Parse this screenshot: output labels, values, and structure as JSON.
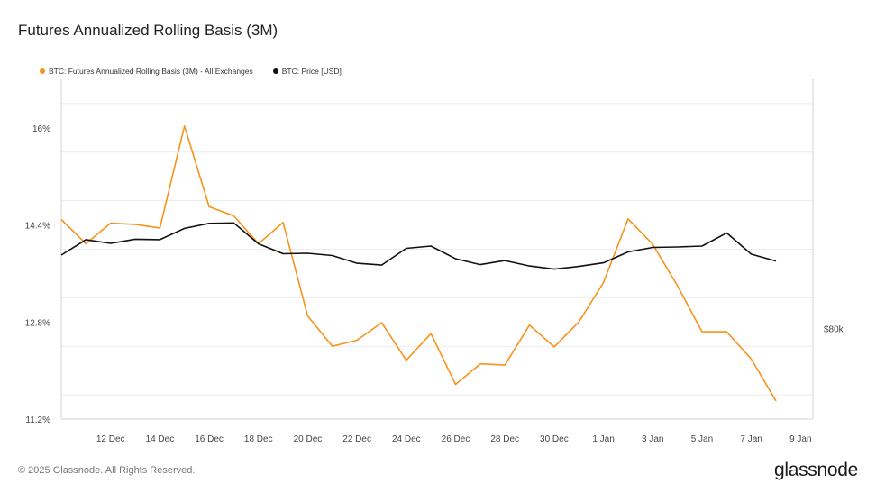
{
  "title": "Futures Annualized Rolling Basis (3M)",
  "footer": "© 2025 Glassnode. All Rights Reserved.",
  "brand": "glassnode",
  "chart_data": {
    "type": "line",
    "title": "Futures Annualized Rolling Basis (3M)",
    "legend_position": "top-left",
    "grid": true,
    "x_tick_labels": [
      "12 Dec",
      "14 Dec",
      "16 Dec",
      "18 Dec",
      "20 Dec",
      "22 Dec",
      "24 Dec",
      "26 Dec",
      "28 Dec",
      "30 Dec",
      "1 Jan",
      "3 Jan",
      "5 Jan",
      "7 Jan",
      "9 Jan"
    ],
    "y_left": {
      "tick_labels": [
        "11.2%",
        "12.8%",
        "14.4%",
        "16%"
      ],
      "ticks": [
        11.2,
        12.8,
        14.4,
        16.0
      ],
      "range": [
        11.2,
        16.8
      ]
    },
    "y_right": {
      "tick_labels": [
        "$80k"
      ],
      "ticks": [
        80000
      ]
    },
    "x": [
      "2024-12-10",
      "2024-12-11",
      "2024-12-12",
      "2024-12-13",
      "2024-12-14",
      "2024-12-15",
      "2024-12-16",
      "2024-12-17",
      "2024-12-18",
      "2024-12-19",
      "2024-12-20",
      "2024-12-21",
      "2024-12-22",
      "2024-12-23",
      "2024-12-24",
      "2024-12-25",
      "2024-12-26",
      "2024-12-27",
      "2024-12-28",
      "2024-12-29",
      "2024-12-30",
      "2024-12-31",
      "2025-01-01",
      "2025-01-02",
      "2025-01-03",
      "2025-01-04",
      "2025-01-05",
      "2025-01-06",
      "2025-01-07",
      "2025-01-08"
    ],
    "series": [
      {
        "name": "BTC: Futures Annualized Rolling Basis (3M) - All Exchanges",
        "color": "#f7931a",
        "axis": "left",
        "values": [
          14.49,
          14.09,
          14.43,
          14.41,
          14.35,
          16.03,
          14.7,
          14.55,
          14.09,
          14.44,
          12.9,
          12.4,
          12.5,
          12.79,
          12.17,
          12.61,
          11.77,
          12.11,
          12.09,
          12.75,
          12.39,
          12.8,
          13.45,
          14.5,
          14.08,
          13.4,
          12.64,
          12.64,
          12.19,
          11.5
        ]
      },
      {
        "name": "BTC: Price [USD]",
        "color": "#111111",
        "axis": "right",
        "values": [
          96200,
          99600,
          98800,
          99700,
          99600,
          102100,
          103200,
          103300,
          98700,
          96500,
          96600,
          96100,
          94400,
          94000,
          97700,
          98200,
          95400,
          94100,
          95000,
          93800,
          93100,
          93700,
          94500,
          96900,
          97900,
          98000,
          98200,
          101100,
          96400,
          94900
        ]
      }
    ]
  }
}
